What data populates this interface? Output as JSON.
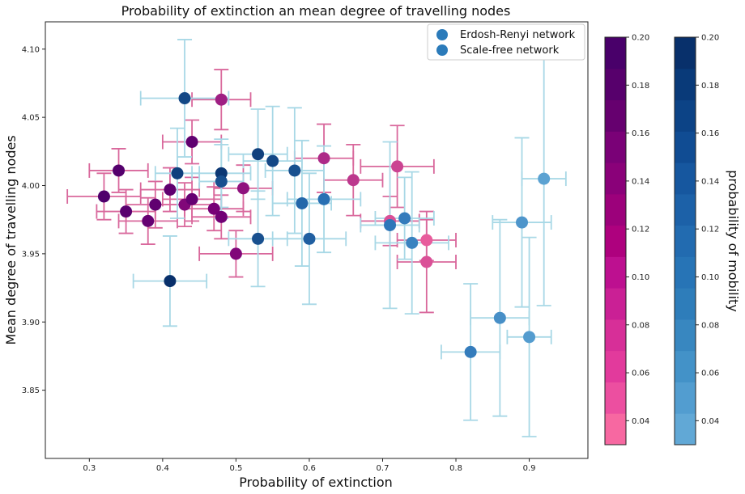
{
  "chart_data": {
    "type": "scatter",
    "title": "Probability of extinction an mean degree of travelling nodes",
    "xlabel": "Probability of extinction",
    "ylabel": "Mean degree of travelling nodes",
    "xlim": [
      0.24,
      0.98
    ],
    "ylim": [
      3.8,
      4.12
    ],
    "x_ticks": [
      "0.3",
      "0.4",
      "0.5",
      "0.6",
      "0.7",
      "0.8",
      "0.9"
    ],
    "y_ticks": [
      "3.85",
      "3.90",
      "3.95",
      "4.00",
      "4.05",
      "4.10"
    ],
    "legend": {
      "placement": "top-right",
      "entries": [
        "Erdosh-Renyi network",
        "Scale-free network"
      ],
      "marker_color": "#2b7bba"
    },
    "errorbar_colors": {
      "erdos": "#d9689c",
      "scalefree": "#a8d8e6"
    },
    "series": [
      {
        "name": "Erdosh-Renyi network",
        "colormap": [
          "#f768a1",
          "#7a0177",
          "#49006a"
        ],
        "points": [
          {
            "x": 0.32,
            "y": 3.992,
            "xerr": 0.05,
            "yerr": 0.017,
            "p": 0.19
          },
          {
            "x": 0.34,
            "y": 4.011,
            "xerr": 0.04,
            "yerr": 0.016,
            "p": 0.18
          },
          {
            "x": 0.35,
            "y": 3.981,
            "xerr": 0.04,
            "yerr": 0.016,
            "p": 0.17
          },
          {
            "x": 0.38,
            "y": 3.974,
            "xerr": 0.04,
            "yerr": 0.017,
            "p": 0.15
          },
          {
            "x": 0.39,
            "y": 3.986,
            "xerr": 0.04,
            "yerr": 0.017,
            "p": 0.16
          },
          {
            "x": 0.41,
            "y": 3.997,
            "xerr": 0.04,
            "yerr": 0.016,
            "p": 0.16
          },
          {
            "x": 0.43,
            "y": 3.986,
            "xerr": 0.04,
            "yerr": 0.016,
            "p": 0.11
          },
          {
            "x": 0.44,
            "y": 4.032,
            "xerr": 0.04,
            "yerr": 0.016,
            "p": 0.16
          },
          {
            "x": 0.44,
            "y": 3.99,
            "xerr": 0.04,
            "yerr": 0.016,
            "p": 0.15
          },
          {
            "x": 0.47,
            "y": 3.983,
            "xerr": 0.04,
            "yerr": 0.016,
            "p": 0.12
          },
          {
            "x": 0.48,
            "y": 4.063,
            "xerr": 0.04,
            "yerr": 0.022,
            "p": 0.09
          },
          {
            "x": 0.48,
            "y": 3.977,
            "xerr": 0.04,
            "yerr": 0.016,
            "p": 0.13
          },
          {
            "x": 0.5,
            "y": 3.95,
            "xerr": 0.05,
            "yerr": 0.017,
            "p": 0.11
          },
          {
            "x": 0.51,
            "y": 3.998,
            "xerr": 0.04,
            "yerr": 0.017,
            "p": 0.1
          },
          {
            "x": 0.62,
            "y": 4.02,
            "xerr": 0.04,
            "yerr": 0.025,
            "p": 0.08
          },
          {
            "x": 0.66,
            "y": 4.004,
            "xerr": 0.04,
            "yerr": 0.026,
            "p": 0.07
          },
          {
            "x": 0.71,
            "y": 3.974,
            "xerr": 0.04,
            "yerr": 0.018,
            "p": 0.05
          },
          {
            "x": 0.72,
            "y": 4.014,
            "xerr": 0.05,
            "yerr": 0.03,
            "p": 0.06
          },
          {
            "x": 0.76,
            "y": 3.96,
            "xerr": 0.04,
            "yerr": 0.015,
            "p": 0.04
          },
          {
            "x": 0.76,
            "y": 3.944,
            "xerr": 0.04,
            "yerr": 0.037,
            "p": 0.05
          }
        ]
      },
      {
        "name": "Scale-free network",
        "colormap": [
          "#61a8d6",
          "#2a73b7",
          "#08306b"
        ],
        "points": [
          {
            "x": 0.41,
            "y": 3.93,
            "xerr": 0.05,
            "yerr": 0.033,
            "p": 0.2
          },
          {
            "x": 0.42,
            "y": 4.009,
            "xerr": 0.03,
            "yerr": 0.033,
            "p": 0.18
          },
          {
            "x": 0.43,
            "y": 4.064,
            "xerr": 0.06,
            "yerr": 0.043,
            "p": 0.17
          },
          {
            "x": 0.48,
            "y": 4.009,
            "xerr": 0.04,
            "yerr": 0.025,
            "p": 0.19
          },
          {
            "x": 0.48,
            "y": 4.003,
            "xerr": 0.03,
            "yerr": 0.027,
            "p": 0.16
          },
          {
            "x": 0.53,
            "y": 4.023,
            "xerr": 0.04,
            "yerr": 0.033,
            "p": 0.18
          },
          {
            "x": 0.53,
            "y": 3.961,
            "xerr": 0.04,
            "yerr": 0.035,
            "p": 0.16
          },
          {
            "x": 0.55,
            "y": 4.018,
            "xerr": 0.04,
            "yerr": 0.04,
            "p": 0.17
          },
          {
            "x": 0.58,
            "y": 4.011,
            "xerr": 0.04,
            "yerr": 0.046,
            "p": 0.16
          },
          {
            "x": 0.59,
            "y": 3.987,
            "xerr": 0.04,
            "yerr": 0.046,
            "p": 0.13
          },
          {
            "x": 0.6,
            "y": 3.961,
            "xerr": 0.05,
            "yerr": 0.048,
            "p": 0.14
          },
          {
            "x": 0.62,
            "y": 3.99,
            "xerr": 0.05,
            "yerr": 0.039,
            "p": 0.12
          },
          {
            "x": 0.71,
            "y": 3.971,
            "xerr": 0.04,
            "yerr": 0.061,
            "p": 0.11
          },
          {
            "x": 0.73,
            "y": 3.976,
            "xerr": 0.04,
            "yerr": 0.03,
            "p": 0.1
          },
          {
            "x": 0.74,
            "y": 3.958,
            "xerr": 0.05,
            "yerr": 0.052,
            "p": 0.09
          },
          {
            "x": 0.82,
            "y": 3.878,
            "xerr": 0.04,
            "yerr": 0.05,
            "p": 0.1
          },
          {
            "x": 0.86,
            "y": 3.903,
            "xerr": 0.04,
            "yerr": 0.072,
            "p": 0.07
          },
          {
            "x": 0.89,
            "y": 3.973,
            "xerr": 0.04,
            "yerr": 0.062,
            "p": 0.06
          },
          {
            "x": 0.9,
            "y": 3.889,
            "xerr": 0.03,
            "yerr": 0.073,
            "p": 0.05
          },
          {
            "x": 0.92,
            "y": 4.005,
            "xerr": 0.03,
            "yerr": 0.093,
            "p": 0.04
          }
        ]
      }
    ],
    "colorbars": [
      {
        "ticks": [
          "0.04",
          "0.06",
          "0.08",
          "0.10",
          "0.12",
          "0.14",
          "0.16",
          "0.18",
          "0.20"
        ],
        "range": [
          0.03,
          0.2
        ],
        "colors": [
          "#f768a1",
          "#ec4fa0",
          "#e23a9c",
          "#d72f98",
          "#ca2095",
          "#bd1090",
          "#ae017e",
          "#9c017b",
          "#8a0179",
          "#7a0177",
          "#66006f",
          "#57006c",
          "#49006a"
        ]
      },
      {
        "label": "probability of mobility",
        "ticks": [
          "0.04",
          "0.06",
          "0.08",
          "0.10",
          "0.12",
          "0.14",
          "0.16",
          "0.18",
          "0.20"
        ],
        "range": [
          0.03,
          0.2
        ],
        "colors": [
          "#61a8d6",
          "#529dd0",
          "#4392c8",
          "#3887c0",
          "#2e7dba",
          "#2774b6",
          "#226bb0",
          "#1c61a8",
          "#16579f",
          "#104c93",
          "#0c4386",
          "#093a79",
          "#08306b"
        ]
      }
    ]
  }
}
